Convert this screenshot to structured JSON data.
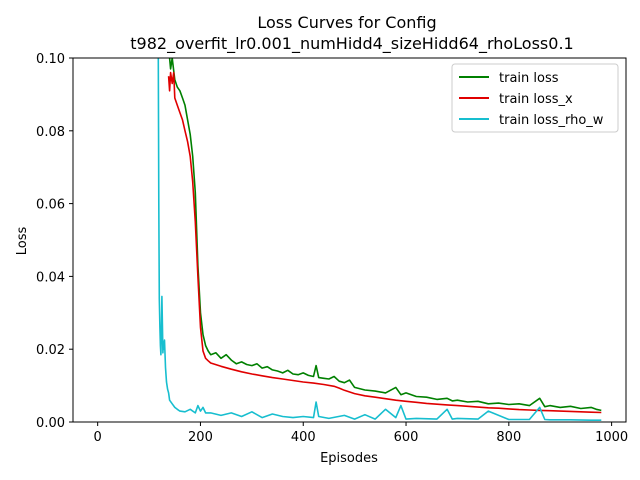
{
  "chart_data": {
    "type": "line",
    "title": "Loss Curves for Config",
    "subtitle": "t982_overfit_lr0.001_numHidd4_sizeHidd64_rhoLoss0.1",
    "xlabel": "Episodes",
    "ylabel": "Loss",
    "xlim": [
      -48,
      1028
    ],
    "ylim": [
      0.0,
      0.1
    ],
    "xticks": [
      0,
      200,
      400,
      600,
      800,
      1000
    ],
    "yticks": [
      0.0,
      0.02,
      0.04,
      0.06,
      0.08,
      0.1
    ],
    "xtick_labels": [
      "0",
      "200",
      "400",
      "600",
      "800",
      "1000"
    ],
    "ytick_labels": [
      "0.00",
      "0.02",
      "0.04",
      "0.06",
      "0.08",
      "0.10"
    ],
    "grid": false,
    "legend_position": "top-right",
    "series": [
      {
        "name": "train loss",
        "color": "#008000",
        "x": [
          140,
          142,
          145,
          150,
          155,
          160,
          165,
          170,
          175,
          180,
          185,
          190,
          195,
          200,
          205,
          210,
          215,
          220,
          230,
          240,
          250,
          260,
          270,
          280,
          290,
          300,
          310,
          320,
          330,
          340,
          350,
          360,
          370,
          380,
          390,
          400,
          410,
          420,
          425,
          430,
          440,
          450,
          460,
          470,
          480,
          490,
          500,
          520,
          540,
          560,
          580,
          590,
          600,
          620,
          640,
          660,
          680,
          690,
          700,
          720,
          740,
          760,
          780,
          800,
          820,
          840,
          860,
          870,
          880,
          900,
          920,
          940,
          960,
          970,
          980
        ],
        "y": [
          0.1,
          0.097,
          0.1,
          0.094,
          0.092,
          0.091,
          0.089,
          0.087,
          0.083,
          0.079,
          0.073,
          0.063,
          0.043,
          0.03,
          0.024,
          0.021,
          0.0195,
          0.0185,
          0.019,
          0.0175,
          0.0185,
          0.017,
          0.016,
          0.0165,
          0.0158,
          0.0155,
          0.016,
          0.0148,
          0.0152,
          0.0143,
          0.014,
          0.0135,
          0.0142,
          0.0132,
          0.013,
          0.0135,
          0.0128,
          0.0125,
          0.0155,
          0.0122,
          0.012,
          0.0118,
          0.0125,
          0.0112,
          0.0108,
          0.0115,
          0.0095,
          0.0088,
          0.0085,
          0.008,
          0.0095,
          0.0075,
          0.008,
          0.007,
          0.0068,
          0.0062,
          0.0065,
          0.0058,
          0.006,
          0.0055,
          0.0057,
          0.005,
          0.0052,
          0.0048,
          0.005,
          0.0045,
          0.0065,
          0.0042,
          0.0045,
          0.004,
          0.0043,
          0.0037,
          0.004,
          0.0035,
          0.0032
        ]
      },
      {
        "name": "train loss_x",
        "color": "#e00000",
        "x": [
          138,
          140,
          142,
          145,
          148,
          150,
          155,
          160,
          165,
          170,
          175,
          180,
          185,
          190,
          195,
          200,
          205,
          210,
          215,
          220,
          240,
          260,
          280,
          300,
          320,
          340,
          360,
          380,
          400,
          420,
          440,
          460,
          470,
          480,
          500,
          520,
          540,
          560,
          580,
          600,
          620,
          640,
          660,
          680,
          700,
          720,
          740,
          760,
          780,
          800,
          820,
          840,
          860,
          880,
          900,
          920,
          940,
          960,
          980
        ],
        "y": [
          0.095,
          0.091,
          0.096,
          0.093,
          0.096,
          0.089,
          0.087,
          0.085,
          0.083,
          0.08,
          0.077,
          0.073,
          0.066,
          0.055,
          0.04,
          0.026,
          0.0195,
          0.0175,
          0.0168,
          0.0162,
          0.0153,
          0.0145,
          0.0138,
          0.0132,
          0.0127,
          0.0122,
          0.0118,
          0.0114,
          0.011,
          0.0107,
          0.0103,
          0.0098,
          0.0093,
          0.0087,
          0.0078,
          0.0072,
          0.0068,
          0.0064,
          0.006,
          0.0057,
          0.0054,
          0.0051,
          0.0049,
          0.0047,
          0.0045,
          0.0043,
          0.0041,
          0.0039,
          0.0038,
          0.0036,
          0.0034,
          0.0033,
          0.0032,
          0.0031,
          0.003,
          0.0029,
          0.0028,
          0.0027,
          0.0026
        ]
      },
      {
        "name": "train loss_rho_w",
        "color": "#17becf",
        "x": [
          117,
          118,
          119,
          120,
          121,
          122,
          123,
          124,
          125,
          126,
          127,
          128,
          129,
          130,
          132,
          134,
          136,
          138,
          140,
          145,
          150,
          155,
          160,
          170,
          180,
          190,
          195,
          200,
          205,
          210,
          220,
          240,
          260,
          280,
          300,
          320,
          340,
          360,
          380,
          400,
          420,
          425,
          430,
          450,
          480,
          500,
          520,
          540,
          560,
          580,
          590,
          600,
          620,
          660,
          680,
          690,
          700,
          740,
          760,
          800,
          840,
          860,
          870,
          880,
          920,
          960,
          980
        ],
        "y": [
          0.1,
          0.1,
          0.06,
          0.034,
          0.026,
          0.021,
          0.0185,
          0.025,
          0.0345,
          0.027,
          0.019,
          0.022,
          0.02,
          0.0225,
          0.015,
          0.011,
          0.009,
          0.008,
          0.006,
          0.005,
          0.004,
          0.0035,
          0.003,
          0.0028,
          0.0035,
          0.0025,
          0.0045,
          0.003,
          0.004,
          0.0025,
          0.0025,
          0.0018,
          0.0025,
          0.0015,
          0.0028,
          0.0012,
          0.0022,
          0.0015,
          0.0012,
          0.0015,
          0.0012,
          0.0055,
          0.0015,
          0.001,
          0.0018,
          0.0008,
          0.002,
          0.0008,
          0.0035,
          0.0012,
          0.0045,
          0.0008,
          0.001,
          0.0008,
          0.0035,
          0.0008,
          0.001,
          0.0008,
          0.003,
          0.0007,
          0.0007,
          0.004,
          0.0007,
          0.0006,
          0.0006,
          0.0005,
          0.0005
        ]
      }
    ]
  }
}
